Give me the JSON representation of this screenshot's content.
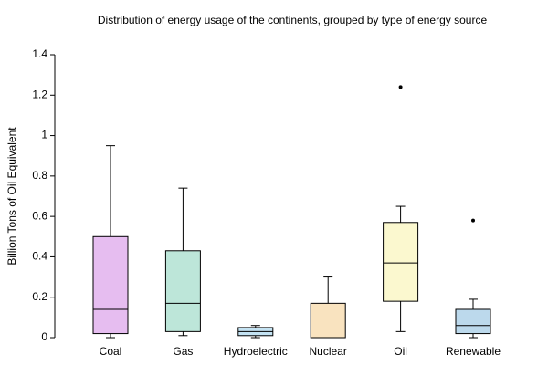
{
  "chart_data": {
    "type": "box",
    "title": "Distribution of energy usage of the continents, grouped by type of energy source",
    "y_label": "Billion Tons of Oil Equivalent",
    "categories": [
      "Coal",
      "Gas",
      "Hydroelectric",
      "Nuclear",
      "Oil",
      "Renewable"
    ],
    "min": [
      0,
      0.01,
      0,
      0,
      0.03,
      0
    ],
    "q1": [
      0.02,
      0.03,
      0.01,
      0,
      0.18,
      0.02
    ],
    "median": [
      0.14,
      0.17,
      0.03,
      0,
      0.37,
      0.06
    ],
    "q3": [
      0.5,
      0.43,
      0.05,
      0.17,
      0.57,
      0.14
    ],
    "max": [
      0.95,
      0.74,
      0.06,
      0.3,
      0.65,
      0.19
    ],
    "outliers": [
      [],
      [],
      [],
      [],
      [
        1.24
      ],
      [
        0.58
      ]
    ],
    "colors": [
      "#e6bdf0",
      "#bde6d9",
      "#c4e3f3",
      "#f9e3bf",
      "#fbf8cf",
      "#bcd9ec"
    ],
    "ylim": [
      0,
      1.4
    ],
    "yticks": [
      0,
      0.2,
      0.4,
      0.6,
      0.8,
      1,
      1.2,
      1.4
    ]
  }
}
